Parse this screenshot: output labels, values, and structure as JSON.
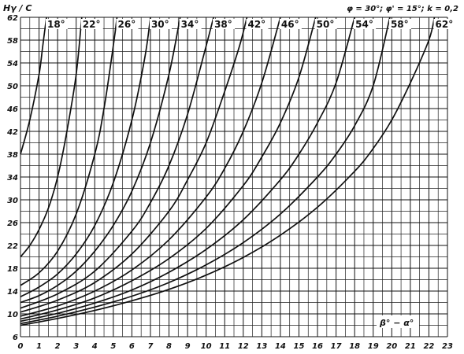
{
  "chart_data": {
    "type": "line",
    "y_axis_label": "Hγ / C",
    "x_axis_label": "β° − α°",
    "parameters": "φ = 30°; φ' = 15°; k = 0,2",
    "xlim": [
      0,
      23
    ],
    "ylim": [
      6,
      62
    ],
    "x_ticks": [
      "0",
      "1",
      "2",
      "3",
      "4",
      "5",
      "6",
      "7",
      "8",
      "9",
      "10",
      "11",
      "12",
      "13",
      "14",
      "15",
      "16",
      "17",
      "18",
      "19",
      "20",
      "21",
      "22",
      "23"
    ],
    "y_ticks": [
      "6",
      "10",
      "14",
      "18",
      "22",
      "26",
      "30",
      "34",
      "38",
      "42",
      "46",
      "50",
      "54",
      "58",
      "62"
    ],
    "grid": true,
    "series": [
      {
        "name": "18°",
        "points": [
          [
            0,
            38
          ],
          [
            0.5,
            44
          ],
          [
            1,
            52
          ],
          [
            1.2,
            57
          ],
          [
            1.4,
            62
          ]
        ]
      },
      {
        "name": "22°",
        "points": [
          [
            0,
            20
          ],
          [
            0.5,
            22
          ],
          [
            1,
            24.8
          ],
          [
            1.5,
            28.5
          ],
          [
            2,
            34
          ],
          [
            2.5,
            42
          ],
          [
            3,
            52
          ],
          [
            3.3,
            62
          ]
        ]
      },
      {
        "name": "26°",
        "points": [
          [
            0,
            15
          ],
          [
            1,
            17.2
          ],
          [
            2,
            21
          ],
          [
            3,
            27.5
          ],
          [
            4,
            38
          ],
          [
            4.5,
            46
          ],
          [
            5,
            57
          ],
          [
            5.2,
            62
          ]
        ]
      },
      {
        "name": "30°",
        "points": [
          [
            0,
            13
          ],
          [
            1,
            14.7
          ],
          [
            2,
            17
          ],
          [
            3,
            20.5
          ],
          [
            4,
            25.5
          ],
          [
            5,
            33
          ],
          [
            6,
            44
          ],
          [
            6.7,
            55
          ],
          [
            7,
            62
          ]
        ]
      },
      {
        "name": "34°",
        "points": [
          [
            0,
            12
          ],
          [
            1,
            13.2
          ],
          [
            2,
            15
          ],
          [
            3,
            17.5
          ],
          [
            4,
            21
          ],
          [
            5,
            25.5
          ],
          [
            6,
            31.5
          ],
          [
            7,
            40
          ],
          [
            8,
            52
          ],
          [
            8.6,
            62
          ]
        ]
      },
      {
        "name": "38°",
        "points": [
          [
            0,
            11
          ],
          [
            2,
            13.5
          ],
          [
            4,
            17.5
          ],
          [
            6,
            24.5
          ],
          [
            7,
            29.5
          ],
          [
            8,
            36
          ],
          [
            9,
            45
          ],
          [
            10,
            57
          ],
          [
            10.4,
            62
          ]
        ]
      },
      {
        "name": "42°",
        "points": [
          [
            0,
            10.3
          ],
          [
            2,
            12.4
          ],
          [
            4,
            15.5
          ],
          [
            6,
            20.5
          ],
          [
            8,
            28
          ],
          [
            9,
            33.5
          ],
          [
            10,
            40
          ],
          [
            11,
            49
          ],
          [
            11.8,
            57
          ],
          [
            12.2,
            62
          ]
        ]
      },
      {
        "name": "46°",
        "points": [
          [
            0,
            9.6
          ],
          [
            2,
            11.4
          ],
          [
            4,
            14
          ],
          [
            6,
            17.7
          ],
          [
            8,
            23
          ],
          [
            10,
            30.5
          ],
          [
            11,
            35.5
          ],
          [
            12,
            42
          ],
          [
            13,
            50.5
          ],
          [
            14,
            62
          ]
        ]
      },
      {
        "name": "50°",
        "points": [
          [
            0,
            9.1
          ],
          [
            2,
            10.7
          ],
          [
            4,
            12.8
          ],
          [
            6,
            15.8
          ],
          [
            8,
            19.7
          ],
          [
            10,
            25
          ],
          [
            12,
            32.5
          ],
          [
            13,
            37.5
          ],
          [
            14,
            43.5
          ],
          [
            15,
            51.5
          ],
          [
            15.9,
            62
          ]
        ]
      },
      {
        "name": "54°",
        "points": [
          [
            0,
            8.7
          ],
          [
            2,
            10.1
          ],
          [
            4,
            11.9
          ],
          [
            6,
            14.2
          ],
          [
            8,
            17.3
          ],
          [
            10,
            21.3
          ],
          [
            12,
            26.5
          ],
          [
            14,
            33.5
          ],
          [
            15,
            38
          ],
          [
            16,
            43.5
          ],
          [
            17,
            50.5
          ],
          [
            18,
            62
          ]
        ]
      },
      {
        "name": "58°",
        "points": [
          [
            0,
            8.3
          ],
          [
            2,
            9.6
          ],
          [
            4,
            11.2
          ],
          [
            6,
            13.1
          ],
          [
            8,
            15.5
          ],
          [
            10,
            18.6
          ],
          [
            12,
            22.5
          ],
          [
            14,
            27.5
          ],
          [
            16,
            34
          ],
          [
            17,
            38
          ],
          [
            18,
            43
          ],
          [
            19,
            50
          ],
          [
            19.9,
            62
          ]
        ]
      },
      {
        "name": "62°",
        "points": [
          [
            0,
            8
          ],
          [
            2,
            9.2
          ],
          [
            4,
            10.6
          ],
          [
            6,
            12.3
          ],
          [
            8,
            14.3
          ],
          [
            10,
            16.8
          ],
          [
            12,
            19.9
          ],
          [
            14,
            23.8
          ],
          [
            16,
            28.7
          ],
          [
            18,
            35
          ],
          [
            19,
            39
          ],
          [
            20,
            44
          ],
          [
            21,
            50.5
          ],
          [
            22,
            58
          ],
          [
            22.3,
            62
          ]
        ]
      }
    ]
  }
}
